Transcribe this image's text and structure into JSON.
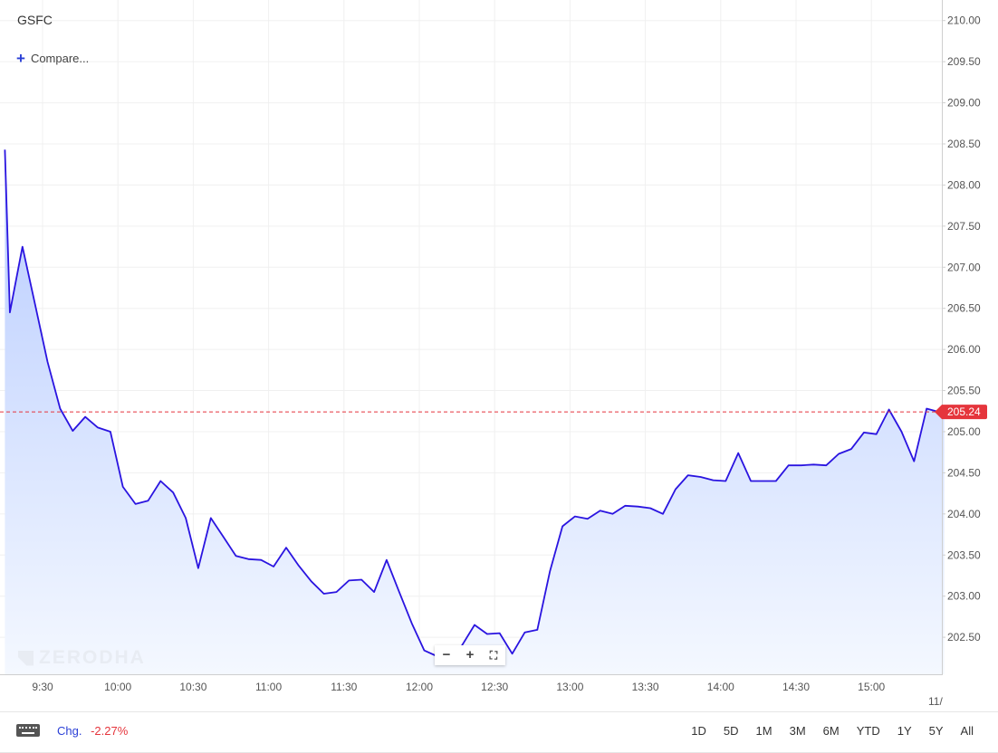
{
  "header": {
    "symbol": "GSFC",
    "compare_label": "Compare..."
  },
  "watermark": "ZERODHA",
  "footer": {
    "chg_label": "Chg.",
    "chg_value": "-2.27%",
    "ranges": [
      "1D",
      "5D",
      "1M",
      "3M",
      "6M",
      "YTD",
      "1Y",
      "5Y",
      "All"
    ]
  },
  "colors": {
    "line": "#2a14e0",
    "fill_top": "#b7cbff",
    "fill_bottom": "#f4f8ff",
    "price_marker": "#e5353c",
    "grid": "#f0f0f0"
  },
  "chart_data": {
    "type": "area",
    "title": "GSFC",
    "current_price": "205.24",
    "ylim": [
      202.05,
      210.25
    ],
    "y_ticks": [
      "210.00",
      "209.50",
      "209.00",
      "208.50",
      "208.00",
      "207.50",
      "207.00",
      "206.50",
      "206.00",
      "205.50",
      "205.00",
      "204.50",
      "204.00",
      "203.50",
      "203.00",
      "202.50"
    ],
    "x_ticks": [
      "9:30",
      "10:00",
      "10:30",
      "11:00",
      "11:30",
      "12:00",
      "12:30",
      "13:00",
      "13:30",
      "14:00",
      "14:30",
      "15:00",
      "11/"
    ],
    "x_range_minutes": [
      555,
      930
    ],
    "series": [
      {
        "x": [
          555,
          557,
          562,
          567,
          572,
          577,
          582,
          587,
          592,
          597,
          602,
          607,
          612,
          617,
          622,
          627,
          632,
          637,
          642,
          647,
          652,
          657,
          662,
          667,
          672,
          677,
          682,
          687,
          692,
          697,
          702,
          707,
          712,
          717,
          722,
          727,
          732,
          737,
          742,
          747,
          752,
          757,
          762,
          767,
          772,
          777,
          782,
          787,
          792,
          797,
          802,
          807,
          812,
          817,
          822,
          827,
          832,
          837,
          842,
          847,
          852,
          857,
          862,
          867,
          872,
          877,
          882,
          887,
          892,
          897,
          902,
          907,
          912,
          917,
          922,
          927,
          929
        ],
        "y": [
          208.43,
          206.45,
          207.25,
          206.55,
          205.85,
          205.28,
          205.01,
          205.18,
          205.05,
          205.0,
          204.33,
          204.12,
          204.16,
          204.4,
          204.26,
          203.95,
          203.34,
          203.95,
          203.72,
          203.49,
          203.45,
          203.44,
          203.36,
          203.59,
          203.37,
          203.18,
          203.03,
          203.05,
          203.19,
          203.2,
          203.05,
          203.44,
          203.05,
          202.67,
          202.34,
          202.27,
          202.28,
          202.4,
          202.65,
          202.54,
          202.55,
          202.3,
          202.56,
          202.59,
          203.3,
          203.85,
          203.97,
          203.94,
          204.04,
          204.0,
          204.1,
          204.09,
          204.07,
          204.0,
          204.3,
          204.47,
          204.45,
          204.41,
          204.4,
          204.74,
          204.4,
          204.4,
          204.4,
          204.59,
          204.59,
          204.6,
          204.59,
          204.73,
          204.79,
          204.99,
          204.97,
          205.27,
          205.0,
          204.64,
          205.28,
          205.24,
          205.22
        ]
      }
    ]
  }
}
